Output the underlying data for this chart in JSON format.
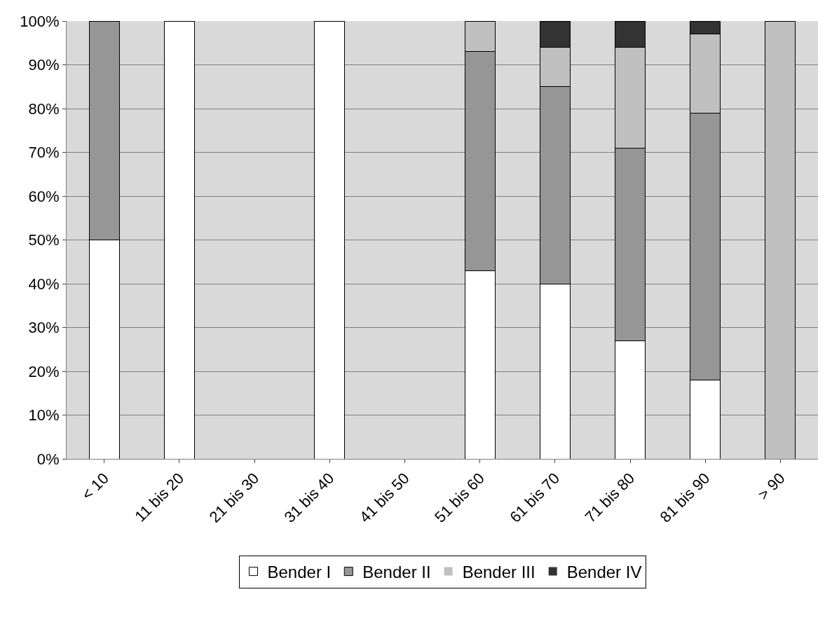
{
  "chart_data": {
    "type": "bar",
    "stacked": true,
    "categories": [
      "< 10",
      "11 bis 20",
      "21 bis 30",
      "31 bis 40",
      "41 bis 50",
      "51 bis 60",
      "61 bis 70",
      "71 bis 80",
      "81 bis 90",
      "> 90"
    ],
    "series": [
      {
        "name": "Bender I",
        "color": "#ffffff",
        "values": [
          50,
          100,
          0,
          100,
          0,
          43,
          40,
          27,
          18,
          0
        ]
      },
      {
        "name": "Bender II",
        "color": "#969696",
        "values": [
          50,
          0,
          0,
          0,
          0,
          50,
          45,
          44,
          61,
          0
        ]
      },
      {
        "name": "Bender III",
        "color": "#c0c0c0",
        "values": [
          0,
          0,
          0,
          0,
          0,
          7,
          9,
          23,
          18,
          100
        ]
      },
      {
        "name": "Bender IV",
        "color": "#333333",
        "values": [
          0,
          0,
          0,
          0,
          0,
          0,
          6,
          6,
          3,
          0
        ]
      }
    ],
    "ylim": [
      0,
      100
    ],
    "yticks": [
      {
        "value": 0,
        "label": "0%"
      },
      {
        "value": 10,
        "label": "10%"
      },
      {
        "value": 20,
        "label": "20%"
      },
      {
        "value": 30,
        "label": "30%"
      },
      {
        "value": 40,
        "label": "40%"
      },
      {
        "value": 50,
        "label": "50%"
      },
      {
        "value": 60,
        "label": "60%"
      },
      {
        "value": 70,
        "label": "70%"
      },
      {
        "value": 80,
        "label": "80%"
      },
      {
        "value": 90,
        "label": "90%"
      },
      {
        "value": 100,
        "label": "100%"
      }
    ],
    "grid": "y",
    "legend": "bottom"
  }
}
